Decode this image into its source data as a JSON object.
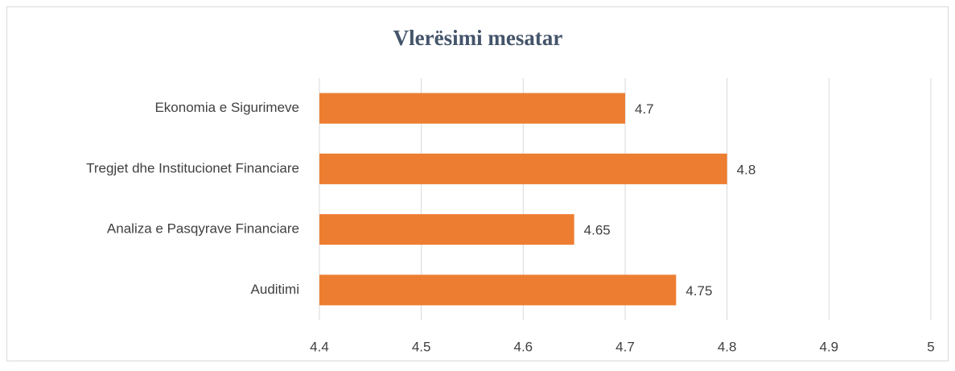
{
  "chart_data": {
    "type": "bar",
    "orientation": "horizontal",
    "title": "Vlerësimi mesatar",
    "categories": [
      "Ekonomia e Sigurimeve",
      "Tregjet dhe Institucionet Financiare",
      "Analiza e Pasqyrave Financiare",
      "Auditimi"
    ],
    "values": [
      4.7,
      4.8,
      4.65,
      4.75
    ],
    "color": "#ed7d31",
    "xlim": [
      4.4,
      5
    ],
    "xticks": [
      4.4,
      4.5,
      4.6,
      4.7,
      4.8,
      4.9,
      5
    ],
    "grid": true
  }
}
